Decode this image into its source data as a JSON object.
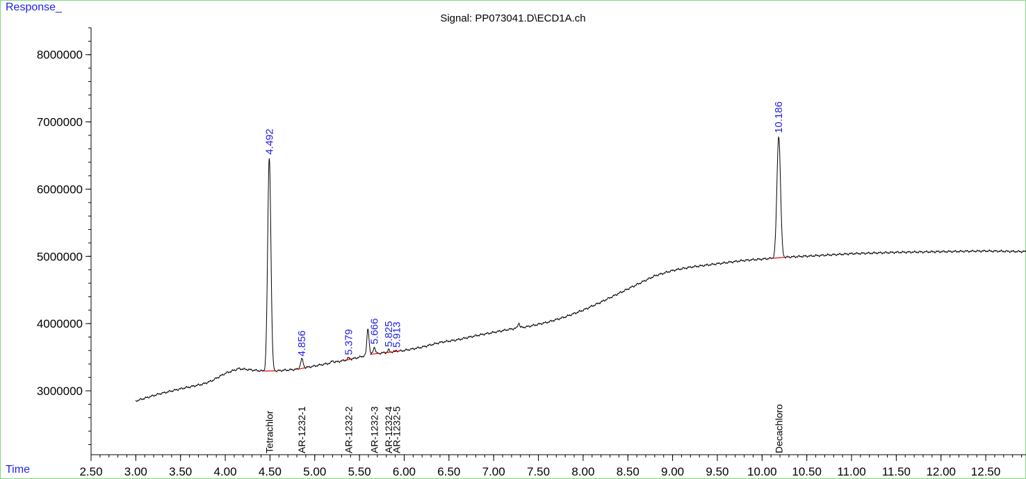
{
  "chart_data": {
    "type": "line",
    "title": "Signal: PP073041.D\\ECD1A.ch",
    "ylabel": "Response_",
    "xlabel": "Time",
    "xlim": [
      2.5,
      12.95
    ],
    "ylim": [
      2050000,
      8400000
    ],
    "x_ticks": [
      "2.50",
      "3.00",
      "3.50",
      "4.00",
      "4.50",
      "5.00",
      "5.50",
      "6.00",
      "6.50",
      "7.00",
      "7.50",
      "8.00",
      "8.50",
      "9.00",
      "9.50",
      "10.00",
      "10.50",
      "11.00",
      "11.50",
      "12.00",
      "12.50"
    ],
    "y_ticks": [
      "3000000",
      "4000000",
      "5000000",
      "6000000",
      "7000000",
      "8000000"
    ],
    "baseline": [
      [
        3.0,
        2850000
      ],
      [
        3.25,
        2950000
      ],
      [
        3.5,
        3030000
      ],
      [
        3.75,
        3100000
      ],
      [
        3.85,
        3150000
      ],
      [
        4.0,
        3260000
      ],
      [
        4.15,
        3330000
      ],
      [
        4.3,
        3310000
      ],
      [
        4.45,
        3290000
      ],
      [
        4.6,
        3300000
      ],
      [
        4.8,
        3320000
      ],
      [
        5.0,
        3370000
      ],
      [
        5.2,
        3420000
      ],
      [
        5.4,
        3470000
      ],
      [
        5.5,
        3500000
      ],
      [
        5.6,
        3540000
      ],
      [
        5.8,
        3570000
      ],
      [
        6.0,
        3600000
      ],
      [
        6.2,
        3650000
      ],
      [
        6.4,
        3720000
      ],
      [
        6.6,
        3760000
      ],
      [
        6.8,
        3820000
      ],
      [
        7.0,
        3870000
      ],
      [
        7.2,
        3920000
      ],
      [
        7.4,
        3960000
      ],
      [
        7.6,
        4020000
      ],
      [
        7.8,
        4100000
      ],
      [
        8.0,
        4200000
      ],
      [
        8.2,
        4320000
      ],
      [
        8.4,
        4450000
      ],
      [
        8.6,
        4580000
      ],
      [
        8.8,
        4710000
      ],
      [
        9.0,
        4790000
      ],
      [
        9.2,
        4840000
      ],
      [
        9.5,
        4890000
      ],
      [
        9.8,
        4940000
      ],
      [
        10.0,
        4960000
      ],
      [
        10.3,
        4990000
      ],
      [
        10.6,
        5010000
      ],
      [
        11.0,
        5040000
      ],
      [
        11.5,
        5060000
      ],
      [
        12.0,
        5070000
      ],
      [
        12.5,
        5080000
      ],
      [
        12.95,
        5070000
      ]
    ],
    "peaks": [
      {
        "rt": 4.492,
        "label": "4.492",
        "apex": 6470000,
        "width": 0.018
      },
      {
        "rt": 4.856,
        "label": "4.856",
        "apex": 3470000,
        "width": 0.015
      },
      {
        "rt": 5.379,
        "label": "5.379",
        "apex": 3490000,
        "width": 0.012
      },
      {
        "rt": 5.666,
        "label": "5.666",
        "apex": 3650000,
        "width": 0.012
      },
      {
        "rt": 5.825,
        "label": "5.825",
        "apex": 3610000,
        "width": 0.01
      },
      {
        "rt": 5.913,
        "label": "5.913",
        "apex": 3600000,
        "width": 0.01
      },
      {
        "rt": 10.186,
        "label": "10.186",
        "apex": 6790000,
        "width": 0.02
      }
    ],
    "unlabeled_peaks": [
      {
        "rt": 5.595,
        "apex": 3930000,
        "width": 0.012
      },
      {
        "rt": 7.28,
        "apex": 4010000,
        "width": 0.01
      },
      {
        "rt": 5.2,
        "apex": 3450000,
        "width": 0.01
      }
    ],
    "compounds": [
      {
        "rt": 4.492,
        "name": "Tetrachlor"
      },
      {
        "rt": 4.856,
        "name": "AR-1232-1"
      },
      {
        "rt": 5.379,
        "name": "AR-1232-2"
      },
      {
        "rt": 5.666,
        "name": "AR-1232-3"
      },
      {
        "rt": 5.825,
        "name": "AR-1232-4"
      },
      {
        "rt": 5.913,
        "name": "AR-1232-5"
      },
      {
        "rt": 10.186,
        "name": "Decachloro"
      }
    ],
    "colors": {
      "trace": "#000000",
      "peak_label": "#1f1fe8",
      "integration": "#e00000",
      "border": "#7fd97f"
    }
  }
}
